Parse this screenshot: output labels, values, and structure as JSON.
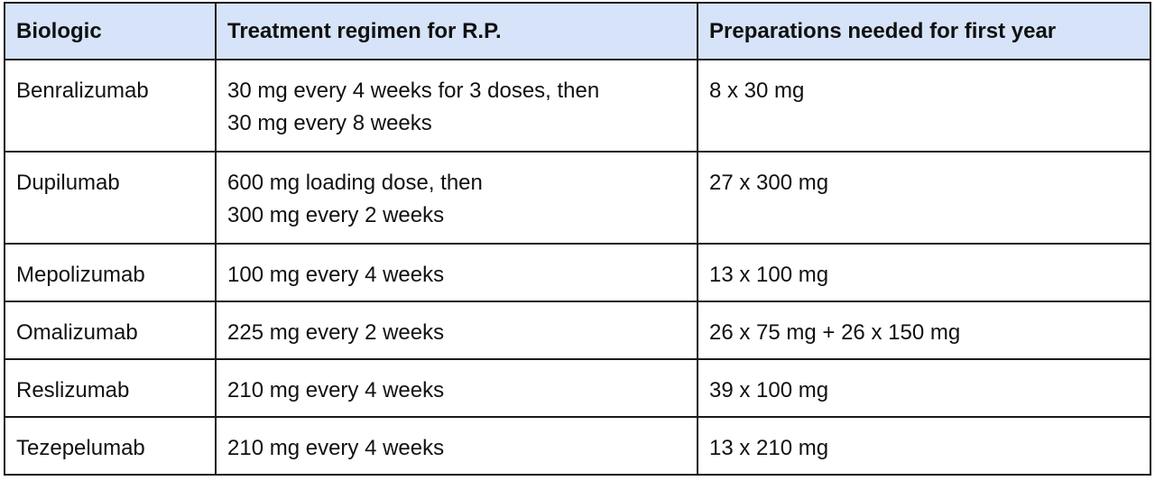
{
  "table": {
    "headers": {
      "biologic": "Biologic",
      "regimen": "Treatment regimen for R.P.",
      "preparations": "Preparations needed for first year"
    },
    "rows": [
      {
        "biologic": "Benralizumab",
        "regimen": [
          "30 mg every 4 weeks for 3 doses, then",
          "30 mg every 8 weeks"
        ],
        "preparations": "8 x 30 mg"
      },
      {
        "biologic": "Dupilumab",
        "regimen": [
          "600 mg loading dose, then",
          "300 mg every 2 weeks"
        ],
        "preparations": "27 x 300 mg"
      },
      {
        "biologic": "Mepolizumab",
        "regimen": [
          "100 mg every 4 weeks"
        ],
        "preparations": "13 x 100 mg"
      },
      {
        "biologic": "Omalizumab",
        "regimen": [
          "225 mg every 2 weeks"
        ],
        "preparations": "26 x 75 mg + 26 x 150 mg"
      },
      {
        "biologic": "Reslizumab",
        "regimen": [
          "210 mg every 4 weeks"
        ],
        "preparations": "39 x 100 mg"
      },
      {
        "biologic": "Tezepelumab",
        "regimen": [
          "210 mg every 4 weeks"
        ],
        "preparations": "13 x 210 mg"
      }
    ]
  },
  "colors": {
    "header_background": "#d6e3f8",
    "border": "#1a1a1a"
  }
}
